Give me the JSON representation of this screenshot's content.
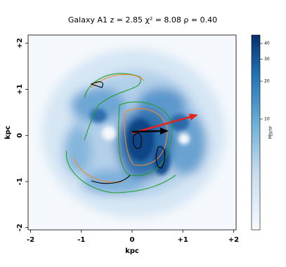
{
  "chart_data": {
    "type": "image",
    "title": "Galaxy A1  z = 2.85  χ² = 8.08  ρ = 0.40",
    "xlabel": "kpc",
    "ylabel": "kpc",
    "xlim": [
      -2.05,
      2.05
    ],
    "xticks": [
      -2,
      -1,
      0,
      {
        "value": 1,
        "label": "+1"
      },
      {
        "value": 2,
        "label": "+2"
      }
    ],
    "ylim": [
      -2.05,
      2.18
    ],
    "yticks": [
      -2,
      -1,
      0,
      {
        "value": 1,
        "label": "+1"
      },
      {
        "value": 2,
        "label": "+2"
      }
    ],
    "arrows": [
      {
        "color": "#e8221b",
        "x": [
          0,
          1.3
        ],
        "y": [
          0.05,
          0.45
        ]
      },
      {
        "color": "#000000",
        "x": [
          0,
          0.72
        ],
        "y": [
          0.08,
          0.1
        ]
      }
    ],
    "colorbar": {
      "label": "MJy/sr",
      "log": true,
      "lim": [
        1.31,
        46.7
      ],
      "ticks": [
        10,
        20,
        30,
        40
      ]
    }
  }
}
